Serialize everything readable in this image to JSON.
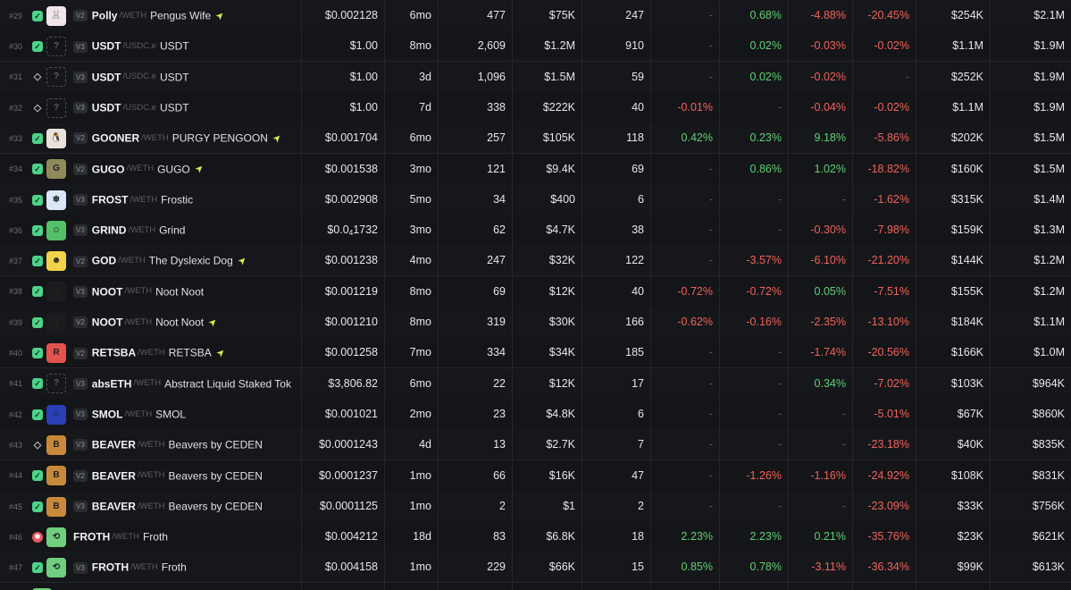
{
  "rows": [
    {
      "rank": "#29",
      "chain": "green",
      "avatar_bg": "#f1e6ec",
      "avatar_glyph": "🐰",
      "ver": "V2",
      "symbol": "Polly",
      "quote": "/WETH",
      "name": "Pengus Wife",
      "boosted": true,
      "price": "$0.002128",
      "price_sub": "",
      "price_tail": "",
      "age": "6mo",
      "txns": "477",
      "volume": "$75K",
      "makers": "247",
      "m5": "-",
      "h1": "0.68%",
      "h6": "-4.88%",
      "h24": "-20.45%",
      "liquidity": "$254K",
      "mcap": "$2.1M"
    },
    {
      "rank": "#30",
      "chain": "green",
      "avatar_bg": "",
      "avatar_glyph": "?",
      "ver": "V3",
      "symbol": "USDT",
      "quote": "/USDC.e",
      "name": "USDT",
      "boosted": false,
      "price": "$1.00",
      "price_sub": "",
      "price_tail": "",
      "age": "8mo",
      "txns": "2,609",
      "volume": "$1.2M",
      "makers": "910",
      "m5": "-",
      "h1": "0.02%",
      "h6": "-0.03%",
      "h24": "-0.02%",
      "liquidity": "$1.1M",
      "mcap": "$1.9M"
    },
    {
      "rank": "#31",
      "chain": "eth",
      "avatar_bg": "",
      "avatar_glyph": "?",
      "ver": "V3",
      "symbol": "USDT",
      "quote": "/USDC.e",
      "name": "USDT",
      "boosted": false,
      "price": "$1.00",
      "price_sub": "",
      "price_tail": "",
      "age": "3d",
      "txns": "1,096",
      "volume": "$1.5M",
      "makers": "59",
      "m5": "-",
      "h1": "0.02%",
      "h6": "-0.02%",
      "h24": "-",
      "liquidity": "$252K",
      "mcap": "$1.9M"
    },
    {
      "rank": "#32",
      "chain": "eth",
      "avatar_bg": "",
      "avatar_glyph": "?",
      "ver": "V3",
      "symbol": "USDT",
      "quote": "/USDC.e",
      "name": "USDT",
      "boosted": false,
      "price": "$1.00",
      "price_sub": "",
      "price_tail": "",
      "age": "7d",
      "txns": "338",
      "volume": "$222K",
      "makers": "40",
      "m5": "-0.01%",
      "h1": "-",
      "h6": "-0.04%",
      "h24": "-0.02%",
      "liquidity": "$1.1M",
      "mcap": "$1.9M"
    },
    {
      "rank": "#33",
      "chain": "green",
      "avatar_bg": "#e9e2dc",
      "avatar_glyph": "🐧",
      "ver": "V2",
      "symbol": "GOONER",
      "quote": "/WETH",
      "name": "PURGY PENGOON",
      "boosted": true,
      "price": "$0.001704",
      "price_sub": "",
      "price_tail": "",
      "age": "6mo",
      "txns": "257",
      "volume": "$105K",
      "makers": "118",
      "m5": "0.42%",
      "h1": "0.23%",
      "h6": "9.18%",
      "h24": "-5.86%",
      "liquidity": "$202K",
      "mcap": "$1.5M"
    },
    {
      "rank": "#34",
      "chain": "green",
      "avatar_bg": "#8f8a5a",
      "avatar_glyph": "G",
      "ver": "V2",
      "symbol": "GUGO",
      "quote": "/WETH",
      "name": "GUGO",
      "boosted": true,
      "price": "$0.001538",
      "price_sub": "",
      "price_tail": "",
      "age": "3mo",
      "txns": "121",
      "volume": "$9.4K",
      "makers": "69",
      "m5": "-",
      "h1": "0.86%",
      "h6": "1.02%",
      "h24": "-18.82%",
      "liquidity": "$160K",
      "mcap": "$1.5M"
    },
    {
      "rank": "#35",
      "chain": "green",
      "avatar_bg": "#d9e7f7",
      "avatar_glyph": "❄",
      "ver": "V3",
      "symbol": "FROST",
      "quote": "/WETH",
      "name": "Frostic",
      "boosted": false,
      "price": "$0.002908",
      "price_sub": "",
      "price_tail": "",
      "age": "5mo",
      "txns": "34",
      "volume": "$400",
      "makers": "6",
      "m5": "-",
      "h1": "-",
      "h6": "-",
      "h24": "-1.62%",
      "liquidity": "$315K",
      "mcap": "$1.4M"
    },
    {
      "rank": "#36",
      "chain": "green",
      "avatar_bg": "#53c06a",
      "avatar_glyph": "☺",
      "ver": "V3",
      "symbol": "GRIND",
      "quote": "/WETH",
      "name": "Grind",
      "boosted": false,
      "price": "$0.0",
      "price_sub": "4",
      "price_tail": "1732",
      "age": "3mo",
      "txns": "62",
      "volume": "$4.7K",
      "makers": "38",
      "m5": "-",
      "h1": "-",
      "h6": "-0.30%",
      "h24": "-7.98%",
      "liquidity": "$159K",
      "mcap": "$1.3M"
    },
    {
      "rank": "#37",
      "chain": "green",
      "avatar_bg": "#f2d24b",
      "avatar_glyph": "☻",
      "ver": "V2",
      "symbol": "GOD",
      "quote": "/WETH",
      "name": "The Dyslexic Dog",
      "boosted": true,
      "price": "$0.001238",
      "price_sub": "",
      "price_tail": "",
      "age": "4mo",
      "txns": "247",
      "volume": "$32K",
      "makers": "122",
      "m5": "-",
      "h1": "-3.57%",
      "h6": "-6.10%",
      "h24": "-21.20%",
      "liquidity": "$144K",
      "mcap": "$1.2M"
    },
    {
      "rank": "#38",
      "chain": "green",
      "avatar_bg": "#1c1c1f",
      "avatar_glyph": "●",
      "ver": "V3",
      "symbol": "NOOT",
      "quote": "/WETH",
      "name": "Noot Noot",
      "boosted": false,
      "price": "$0.001219",
      "price_sub": "",
      "price_tail": "",
      "age": "8mo",
      "txns": "69",
      "volume": "$12K",
      "makers": "40",
      "m5": "-0.72%",
      "h1": "-0.72%",
      "h6": "0.05%",
      "h24": "-7.51%",
      "liquidity": "$155K",
      "mcap": "$1.2M"
    },
    {
      "rank": "#39",
      "chain": "green",
      "avatar_bg": "#1c1c1f",
      "avatar_glyph": "●",
      "ver": "V2",
      "symbol": "NOOT",
      "quote": "/WETH",
      "name": "Noot Noot",
      "boosted": true,
      "price": "$0.001210",
      "price_sub": "",
      "price_tail": "",
      "age": "8mo",
      "txns": "319",
      "volume": "$30K",
      "makers": "166",
      "m5": "-0.62%",
      "h1": "-0.16%",
      "h6": "-2.35%",
      "h24": "-13.10%",
      "liquidity": "$184K",
      "mcap": "$1.1M"
    },
    {
      "rank": "#40",
      "chain": "green",
      "avatar_bg": "#e2534f",
      "avatar_glyph": "R",
      "ver": "V2",
      "symbol": "RETSBA",
      "quote": "/WETH",
      "name": "RETSBA",
      "boosted": true,
      "price": "$0.001258",
      "price_sub": "",
      "price_tail": "",
      "age": "7mo",
      "txns": "334",
      "volume": "$34K",
      "makers": "185",
      "m5": "-",
      "h1": "-",
      "h6": "-1.74%",
      "h24": "-20.56%",
      "liquidity": "$166K",
      "mcap": "$1.0M"
    },
    {
      "rank": "#41",
      "chain": "green",
      "avatar_bg": "",
      "avatar_glyph": "?",
      "ver": "V3",
      "symbol": "absETH",
      "quote": "/WETH",
      "name": "Abstract Liquid Staked Tok",
      "boosted": false,
      "price": "$3,806.82",
      "price_sub": "",
      "price_tail": "",
      "age": "6mo",
      "txns": "22",
      "volume": "$12K",
      "makers": "17",
      "m5": "-",
      "h1": "-",
      "h6": "0.34%",
      "h24": "-7.02%",
      "liquidity": "$103K",
      "mcap": "$964K"
    },
    {
      "rank": "#42",
      "chain": "green",
      "avatar_bg": "#2a3fb8",
      "avatar_glyph": "☺",
      "ver": "V3",
      "symbol": "SMOL",
      "quote": "/WETH",
      "name": "SMOL",
      "boosted": false,
      "price": "$0.001021",
      "price_sub": "",
      "price_tail": "",
      "age": "2mo",
      "txns": "23",
      "volume": "$4.8K",
      "makers": "6",
      "m5": "-",
      "h1": "-",
      "h6": "-",
      "h24": "-5.01%",
      "liquidity": "$67K",
      "mcap": "$860K"
    },
    {
      "rank": "#43",
      "chain": "eth",
      "avatar_bg": "#c88a3a",
      "avatar_glyph": "B",
      "ver": "V3",
      "symbol": "BEAVER",
      "quote": "/WETH",
      "name": "Beavers by CEDEN",
      "boosted": false,
      "price": "$0.0001243",
      "price_sub": "",
      "price_tail": "",
      "age": "4d",
      "txns": "13",
      "volume": "$2.7K",
      "makers": "7",
      "m5": "-",
      "h1": "-",
      "h6": "-",
      "h24": "-23.18%",
      "liquidity": "$40K",
      "mcap": "$835K"
    },
    {
      "rank": "#44",
      "chain": "green",
      "avatar_bg": "#c88a3a",
      "avatar_glyph": "B",
      "ver": "V2",
      "symbol": "BEAVER",
      "quote": "/WETH",
      "name": "Beavers by CEDEN",
      "boosted": false,
      "price": "$0.0001237",
      "price_sub": "",
      "price_tail": "",
      "age": "1mo",
      "txns": "66",
      "volume": "$16K",
      "makers": "47",
      "m5": "-",
      "h1": "-1.26%",
      "h6": "-1.16%",
      "h24": "-24.92%",
      "liquidity": "$108K",
      "mcap": "$831K"
    },
    {
      "rank": "#45",
      "chain": "green",
      "avatar_bg": "#c88a3a",
      "avatar_glyph": "B",
      "ver": "V3",
      "symbol": "BEAVER",
      "quote": "/WETH",
      "name": "Beavers by CEDEN",
      "boosted": false,
      "price": "$0.0001125",
      "price_sub": "",
      "price_tail": "",
      "age": "1mo",
      "txns": "2",
      "volume": "$1",
      "makers": "2",
      "m5": "-",
      "h1": "-",
      "h6": "-",
      "h24": "-23.09%",
      "liquidity": "$33K",
      "mcap": "$756K"
    },
    {
      "rank": "#46",
      "chain": "sol",
      "avatar_bg": "#6fcf7e",
      "avatar_glyph": "⟲",
      "ver": "",
      "symbol": "FROTH",
      "quote": "/WETH",
      "name": "Froth",
      "boosted": false,
      "price": "$0.004212",
      "price_sub": "",
      "price_tail": "",
      "age": "18d",
      "txns": "83",
      "volume": "$6.8K",
      "makers": "18",
      "m5": "2.23%",
      "h1": "2.23%",
      "h6": "0.21%",
      "h24": "-35.76%",
      "liquidity": "$23K",
      "mcap": "$621K"
    },
    {
      "rank": "#47",
      "chain": "green",
      "avatar_bg": "#6fcf7e",
      "avatar_glyph": "⟲",
      "ver": "V3",
      "symbol": "FROTH",
      "quote": "/WETH",
      "name": "Froth",
      "boosted": false,
      "price": "$0.004158",
      "price_sub": "",
      "price_tail": "",
      "age": "1mo",
      "txns": "229",
      "volume": "$66K",
      "makers": "15",
      "m5": "0.85%",
      "h1": "0.78%",
      "h6": "-3.11%",
      "h24": "-36.34%",
      "liquidity": "$99K",
      "mcap": "$613K"
    },
    {
      "rank": "",
      "chain": "",
      "avatar_bg": "#6fcf7e",
      "avatar_glyph": "",
      "ver": "",
      "symbol": "",
      "quote": "",
      "name": "",
      "boosted": false,
      "price": "",
      "price_sub": "",
      "price_tail": "",
      "age": "",
      "txns": "",
      "volume": "",
      "makers": "",
      "m5": "",
      "h1": "",
      "h6": "",
      "h24": "",
      "liquidity": "",
      "mcap": ""
    }
  ],
  "icons": {
    "boost": "lightning-bolt-icon",
    "chain_green": "chain-logo-icon",
    "eth": "ethereum-icon",
    "unknown_token": "question-mark-icon"
  },
  "colors": {
    "positive": "#5fcf77",
    "negative": "#f0625d",
    "background": "#141518",
    "boost": "#d8f04a"
  }
}
